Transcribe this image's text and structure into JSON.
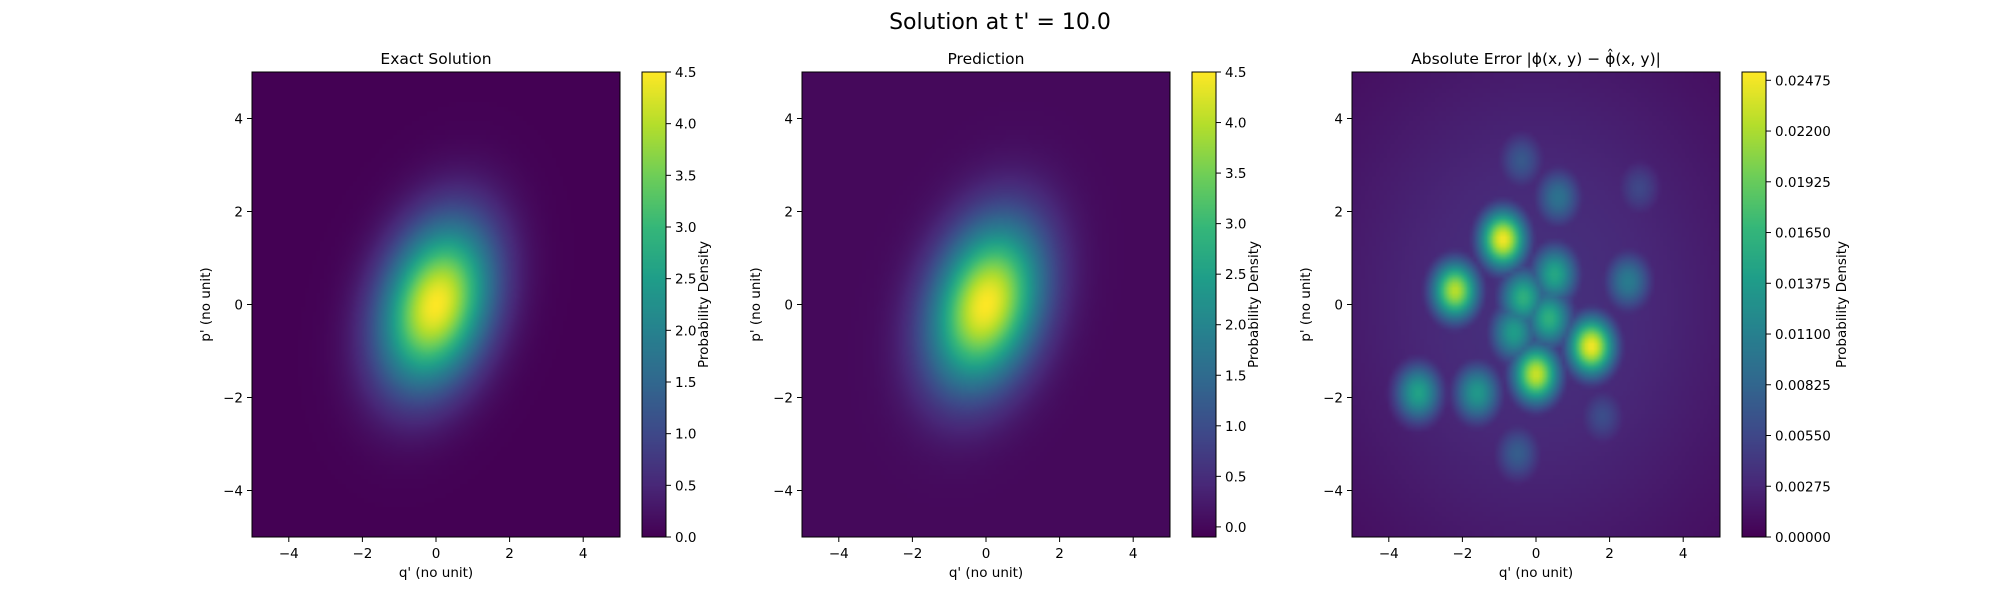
{
  "figure": {
    "title": "Solution at t' = 10.0"
  },
  "colors": {
    "colormap": "viridis",
    "viridis_stops": [
      "#440154",
      "#482878",
      "#3e4989",
      "#31688e",
      "#26828e",
      "#1f9e89",
      "#35b779",
      "#6ece58",
      "#b5de2b",
      "#fde725"
    ]
  },
  "chart_data": [
    {
      "type": "heatmap",
      "title": "Exact Solution",
      "xlabel": "q' (no unit)",
      "ylabel": "p' (no unit)",
      "xlim": [
        -5,
        5
      ],
      "ylim": [
        -5,
        5
      ],
      "x_ticks": [
        "−4",
        "−2",
        "0",
        "2",
        "4"
      ],
      "y_ticks": [
        "−4",
        "−2",
        "0",
        "2",
        "4"
      ],
      "colorbar": {
        "label": "Probability Density",
        "range": [
          0,
          4.5
        ],
        "ticks": [
          "0.0",
          "0.5",
          "1.0",
          "1.5",
          "2.0",
          "2.5",
          "3.0",
          "3.5",
          "4.0",
          "4.5"
        ],
        "tick_values": [
          0,
          0.5,
          1.0,
          1.5,
          2.0,
          2.5,
          3.0,
          3.5,
          4.0,
          4.5
        ]
      },
      "field": {
        "kind": "gaussian",
        "center": [
          0,
          0
        ],
        "peak": 4.5,
        "sigma_major": 1.3,
        "sigma_minor": 0.95,
        "angle_deg": 60
      }
    },
    {
      "type": "heatmap",
      "title": "Prediction",
      "xlabel": "q' (no unit)",
      "ylabel": "p' (no unit)",
      "xlim": [
        -5,
        5
      ],
      "ylim": [
        -5,
        5
      ],
      "x_ticks": [
        "−4",
        "−2",
        "0",
        "2",
        "4"
      ],
      "y_ticks": [
        "−4",
        "−2",
        "0",
        "2",
        "4"
      ],
      "colorbar": {
        "label": "Probability Density",
        "range": [
          -0.1,
          4.5
        ],
        "ticks": [
          "0.0",
          "0.5",
          "1.0",
          "1.5",
          "2.0",
          "2.5",
          "3.0",
          "3.5",
          "4.0",
          "4.5"
        ],
        "tick_values": [
          0,
          0.5,
          1.0,
          1.5,
          2.0,
          2.5,
          3.0,
          3.5,
          4.0,
          4.5
        ]
      },
      "field": {
        "kind": "gaussian",
        "center": [
          0,
          0
        ],
        "peak": 4.5,
        "sigma_major": 1.3,
        "sigma_minor": 0.95,
        "angle_deg": 60
      }
    },
    {
      "type": "heatmap",
      "title": "Absolute Error |ϕ(x, y) − ϕ̂(x, y)|",
      "xlabel": "q' (no unit)",
      "ylabel": "p' (no unit)",
      "xlim": [
        -5,
        5
      ],
      "ylim": [
        -5,
        5
      ],
      "x_ticks": [
        "−4",
        "−2",
        "0",
        "2",
        "4"
      ],
      "y_ticks": [
        "−4",
        "−2",
        "0",
        "2",
        "4"
      ],
      "colorbar": {
        "label": "Probability Density",
        "range": [
          0,
          0.0252
        ],
        "ticks": [
          "0.00000",
          "0.00275",
          "0.00550",
          "0.00825",
          "0.01100",
          "0.01375",
          "0.01650",
          "0.01925",
          "0.02200",
          "0.02475"
        ],
        "tick_values": [
          0,
          0.00275,
          0.0055,
          0.00825,
          0.011,
          0.01375,
          0.0165,
          0.01925,
          0.022,
          0.02475
        ]
      },
      "field": {
        "kind": "blobs",
        "blobs": [
          {
            "center": [
              -0.9,
              1.4
            ],
            "value": 0.0248
          },
          {
            "center": [
              1.5,
              -0.9
            ],
            "value": 0.0248
          },
          {
            "center": [
              0.0,
              -1.5
            ],
            "value": 0.0232
          },
          {
            "center": [
              -2.2,
              0.3
            ],
            "value": 0.0225
          },
          {
            "center": [
              -0.35,
              0.15
            ],
            "value": 0.016
          },
          {
            "center": [
              0.35,
              -0.3
            ],
            "value": 0.016
          },
          {
            "center": [
              0.5,
              0.65
            ],
            "value": 0.015
          },
          {
            "center": [
              -0.6,
              -0.6
            ],
            "value": 0.014
          },
          {
            "center": [
              -3.2,
              -1.9
            ],
            "value": 0.0145
          },
          {
            "center": [
              -1.6,
              -1.9
            ],
            "value": 0.0135
          },
          {
            "center": [
              2.5,
              0.5
            ],
            "value": 0.0105
          },
          {
            "center": [
              0.6,
              2.3
            ],
            "value": 0.0095
          },
          {
            "center": [
              -0.4,
              3.1
            ],
            "value": 0.007
          },
          {
            "center": [
              2.8,
              2.5
            ],
            "value": 0.0055
          },
          {
            "center": [
              1.8,
              -2.4
            ],
            "value": 0.006
          },
          {
            "center": [
              -0.5,
              -3.2
            ],
            "value": 0.0075
          }
        ]
      }
    }
  ]
}
